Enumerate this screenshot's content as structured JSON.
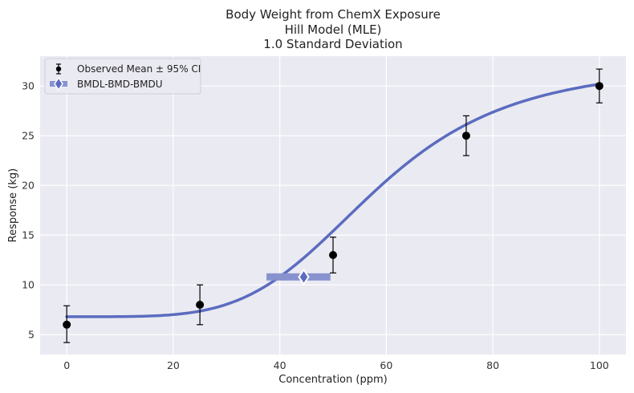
{
  "chart_data": {
    "type": "scatter",
    "title_lines": [
      "Body Weight from ChemX Exposure",
      "Hill Model (MLE)",
      "1.0 Standard Deviation"
    ],
    "xlabel": "Concentration (ppm)",
    "ylabel": "Response (kg)",
    "xlim": [
      -5,
      105
    ],
    "ylim": [
      3,
      33
    ],
    "xticks": [
      0,
      20,
      40,
      60,
      80,
      100
    ],
    "yticks": [
      5,
      10,
      15,
      20,
      25,
      30
    ],
    "grid": true,
    "legend_position": "top-left",
    "series": [
      {
        "name": "Observed Mean ± 95% CI",
        "kind": "points-with-errorbars",
        "x": [
          0,
          25,
          50,
          75,
          100
        ],
        "y": [
          6.0,
          8.0,
          13.0,
          25.0,
          30.0
        ],
        "lower": [
          4.2,
          6.0,
          11.2,
          23.0,
          28.3
        ],
        "upper": [
          7.9,
          10.0,
          14.8,
          27.0,
          31.7
        ],
        "color": "#000000"
      },
      {
        "name": "Hill fit",
        "kind": "curve",
        "model": "hill",
        "params": {
          "g": 6.8,
          "v": 25.4,
          "k": 58.0,
          "n": 4.5
        },
        "color": "#5B6CC0"
      },
      {
        "name": "BMDL-BMD-BMDU",
        "kind": "interval",
        "bmdl": 37.5,
        "bmd": 44.5,
        "bmdu": 49.5,
        "y": 10.8,
        "color": "#8892CF"
      }
    ]
  },
  "legend": {
    "observed_label": "Observed Mean ± 95% CI",
    "bmd_label": "BMDL-BMD-BMDU"
  },
  "colors": {
    "plot_bg": "#EAEAF2",
    "grid": "#FFFFFF",
    "curve": "#5B6CC0",
    "bmd_bar": "#8892CF",
    "points": "#000000"
  }
}
